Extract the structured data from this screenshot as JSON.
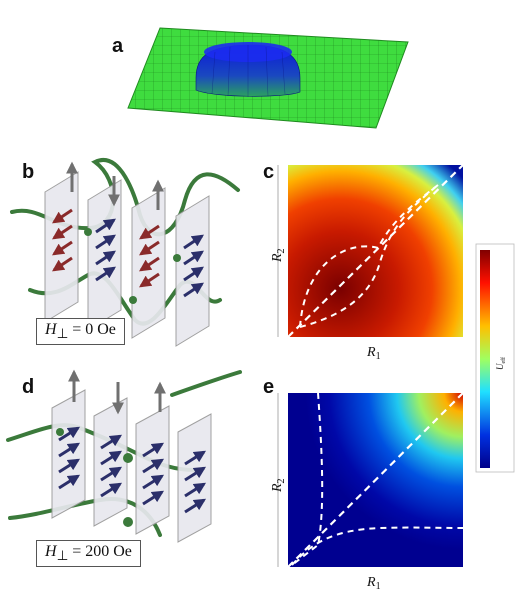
{
  "panels": {
    "a": {
      "letter": "a"
    },
    "b": {
      "letter": "b",
      "field_symbol": "H",
      "field_sub": "⊥",
      "field_value": " = 0 Oe"
    },
    "c": {
      "letter": "c",
      "xlabel_main": "R",
      "xlabel_sub": "1",
      "ylabel_main": "R",
      "ylabel_sub": "2"
    },
    "d": {
      "letter": "d",
      "field_symbol": "H",
      "field_sub": "⊥",
      "field_value": " = 200 Oe"
    },
    "e": {
      "letter": "e",
      "xlabel_main": "R",
      "xlabel_sub": "1",
      "ylabel_main": "R",
      "ylabel_sub": "2"
    }
  },
  "colorbar": {
    "label_main": "U",
    "label_sub": "eff"
  },
  "colors": {
    "surface_green": "#3fdc3f",
    "dome_blue": "#1428c8",
    "spin_blue": "#2b2f6a",
    "spin_red": "#8a2a2a",
    "helix_green": "#3b7a3b"
  }
}
